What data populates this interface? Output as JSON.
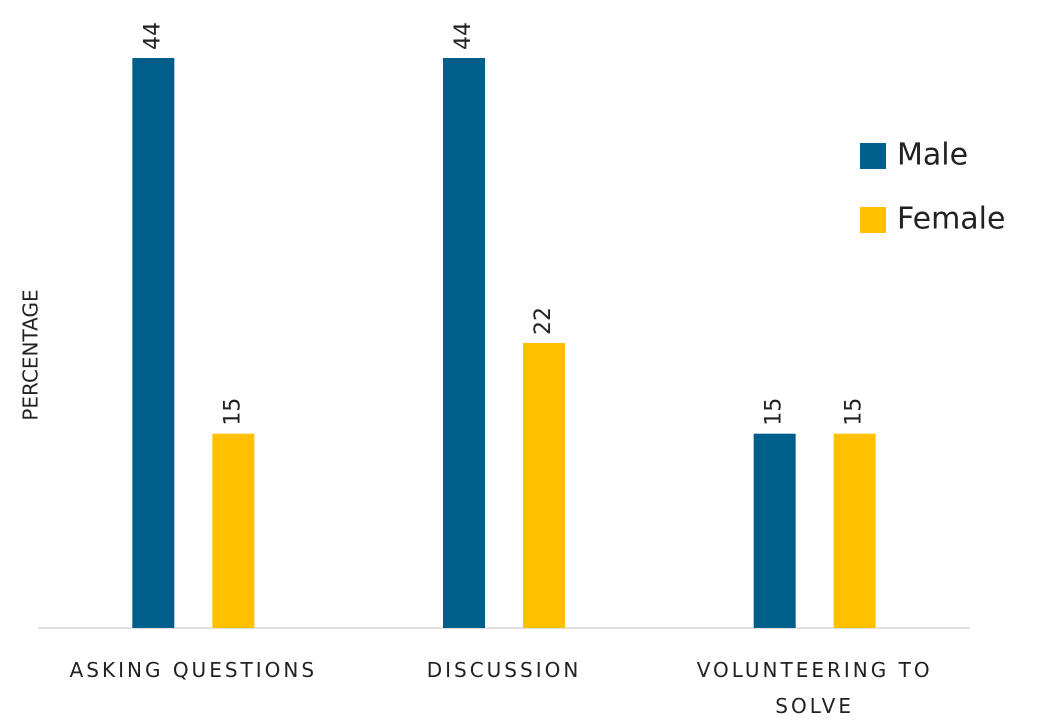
{
  "chart_data": {
    "type": "bar",
    "y_label": "PERCENTAGE",
    "categories": [
      "ASKING QUESTIONS",
      "DISCUSSION",
      "VOLUNTEERING TO SOLVE"
    ],
    "series": [
      {
        "name": "Male",
        "color": "#005f8a",
        "values": [
          44,
          44,
          15
        ]
      },
      {
        "name": "Female",
        "color": "#ffc000",
        "values": [
          15,
          22,
          15
        ]
      }
    ],
    "legend": "right"
  }
}
